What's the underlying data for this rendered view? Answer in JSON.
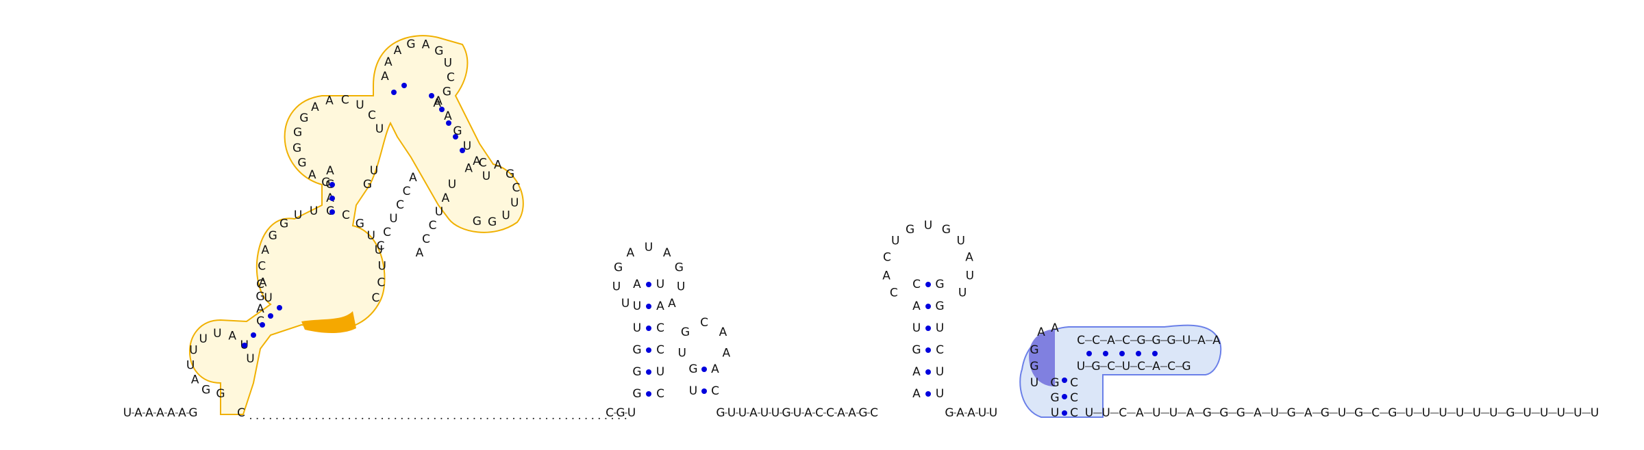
{
  "diagram": {
    "type": "rna-secondary-structure",
    "colors": {
      "background": "#ffffff",
      "base_text": "#111111",
      "backbone": "#333333",
      "pair_dot": "#0000dd",
      "region_outline_orange": "#f0b000",
      "region_fill_orange": "#fff8dc",
      "highlight_orange": "#f5a800",
      "region_outline_blue": "#6a7fe8",
      "region_fill_blue": "#dbe6f8",
      "highlight_blue": "#8080e0"
    },
    "leader_5prime": "UAAAAAG",
    "domain1_bases": "GGAUUUUAUUCAGCUACAGGUUCCGUUUCCAGAGAGGGGAACUCUAAAGAGUCGAAAGUAUACAGCUUGGUAUCCAACCUCCUG",
    "domain1_highlight": "ACCA",
    "linker_dots": "..........................................................",
    "hairpin2": {
      "stem_5": "AUUGGG",
      "loop": "UUGAUAGUA",
      "stem_3": "UACCUC"
    },
    "linker_mid": "CGU",
    "hairpin3": {
      "stem_5": "GU",
      "loop": "UGCAA",
      "stem_3": "AC"
    },
    "linker_mid2": "GUUAUUGUACCAAGC",
    "hairpin4": {
      "stem_5": "CAUGAA",
      "loop": "CACUGUGUAUU",
      "stem_3": "UUCUGG"
    },
    "linker_mid3": "GAAUU",
    "hairpin5": {
      "bases_top": "AACCACGGGUAA",
      "bases_bottom": "UGCUCACG",
      "stem_left": "GGU",
      "highlight": "AGGU"
    },
    "trailer_3prime": "UUCAUUAGGGAUGAGUGCGUUUUUUGUUUUU"
  }
}
